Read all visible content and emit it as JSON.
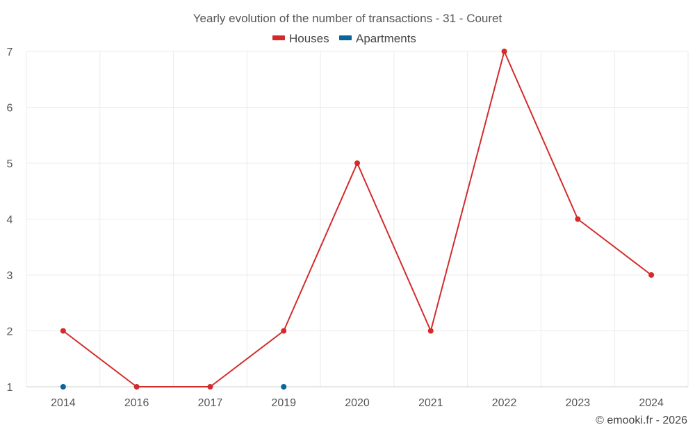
{
  "chart_data": {
    "type": "line",
    "title": "Yearly evolution of the number of transactions - 31 - Couret",
    "categories": [
      "2014",
      "2016",
      "2017",
      "2019",
      "2020",
      "2021",
      "2022",
      "2023",
      "2024"
    ],
    "series": [
      {
        "name": "Houses",
        "color": "#d32b2b",
        "values": [
          2,
          1,
          1,
          2,
          5,
          2,
          7,
          4,
          3
        ]
      },
      {
        "name": "Apartments",
        "color": "#07669a",
        "values": [
          1,
          null,
          null,
          1,
          null,
          null,
          null,
          null,
          null
        ]
      }
    ],
    "y_ticks": [
      "1",
      "2",
      "3",
      "4",
      "5",
      "6",
      "7"
    ],
    "ylim": [
      1,
      7
    ],
    "xlabel": "",
    "ylabel": "",
    "legend": "top-center",
    "grid": true
  },
  "credit": "© emooki.fr - 2026"
}
